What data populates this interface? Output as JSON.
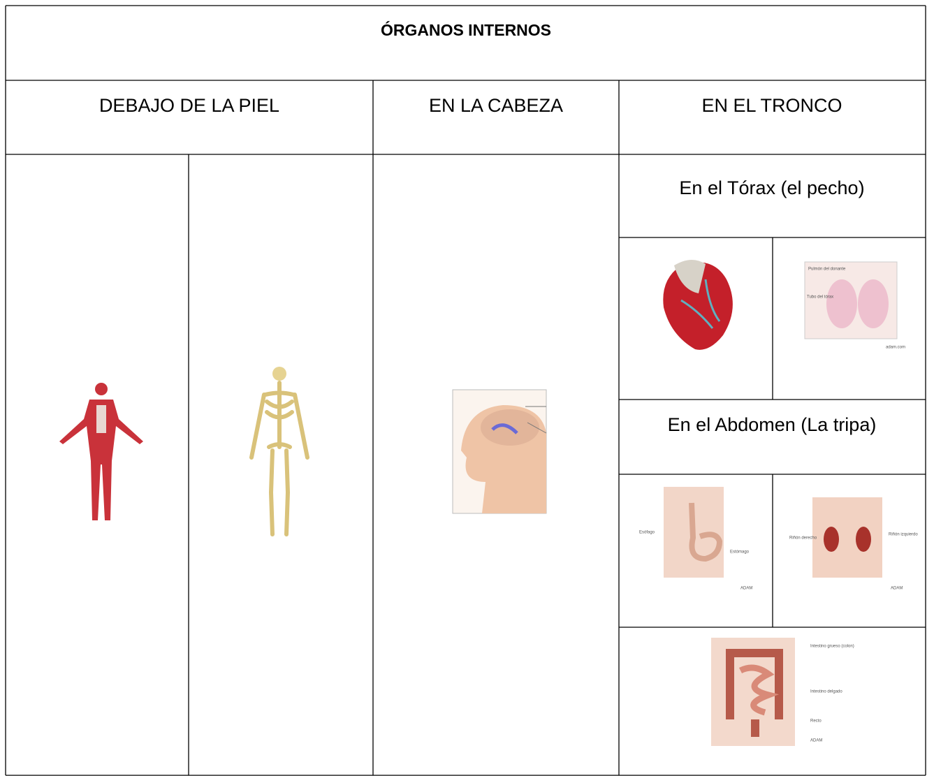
{
  "title": "ÓRGANOS INTERNOS",
  "headers": [
    "DEBAJO DE LA PIEL",
    "EN LA CABEZA",
    "EN EL TRONCO"
  ],
  "thorax": {
    "title": "En el Tórax (el pecho)",
    "lung_labels": [
      "Pulmón del donante",
      "Tubo del tórax",
      "adam.com"
    ]
  },
  "abdomen": {
    "title": "En el Abdomen (La tripa)",
    "stomach_labels": [
      "Esófago",
      "Estómago",
      "ADAM"
    ],
    "kidney_labels": [
      "Riñón derecho",
      "Riñón izquierdo",
      "ADAM"
    ],
    "intestine_labels": [
      "Intestino grueso (colon)",
      "Intestino delgado",
      "Recto",
      "ADAM"
    ]
  }
}
